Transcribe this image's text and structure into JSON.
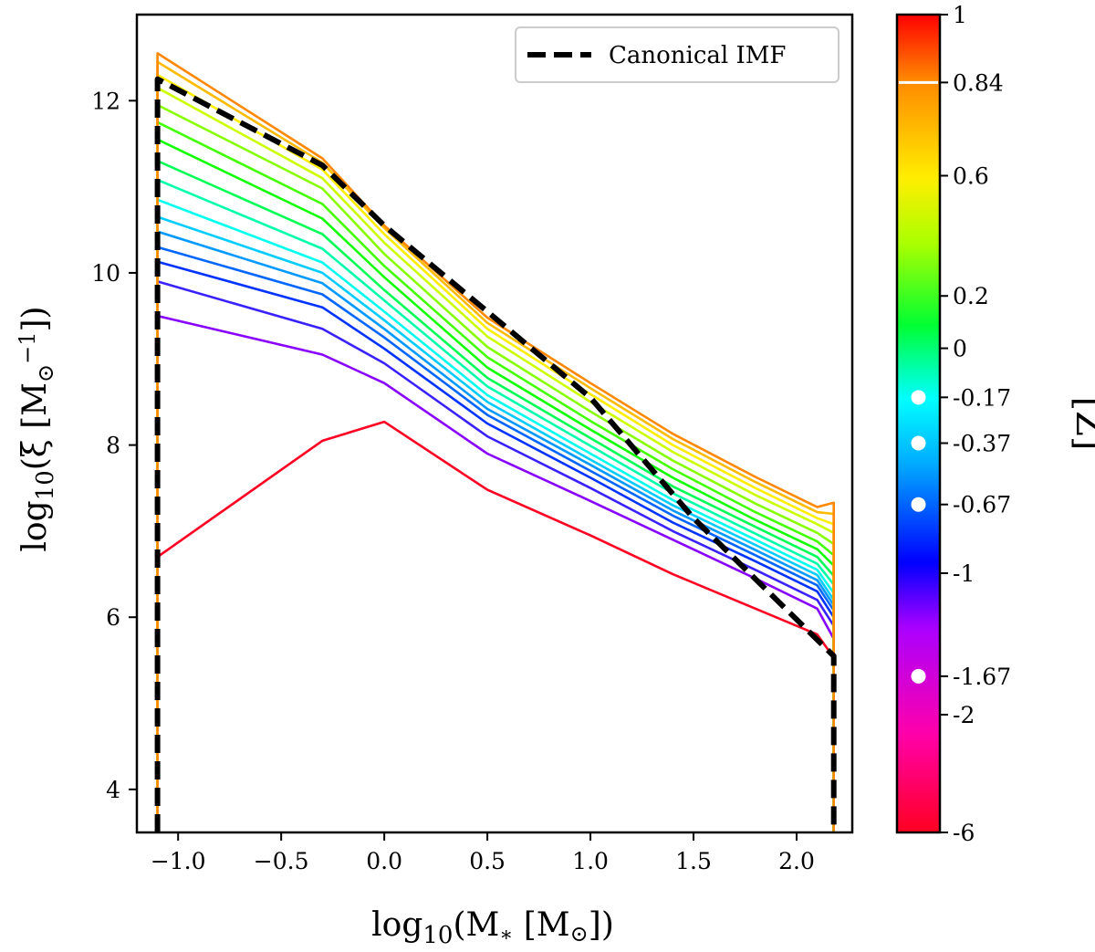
{
  "chart_data": {
    "type": "line",
    "xlabel_base": "log",
    "xlabel_sub": "10",
    "xlabel_rest": "(M",
    "xlabel_star": "∗",
    "xlabel_unit": " [M",
    "xlabel_sun": "⊙",
    "xlabel_close": "])",
    "ylabel_base": "log",
    "ylabel_sub": "10",
    "ylabel_rest": "(ξ [M",
    "ylabel_sun": "⊙",
    "ylabel_sup": "−1",
    "ylabel_close": "])",
    "colorbar_label": "[Z]",
    "xlim": [
      -1.2,
      2.27
    ],
    "ylim": [
      3.5,
      13.0
    ],
    "x_ticks": [
      -1.0,
      -0.5,
      0.0,
      0.5,
      1.0,
      1.5,
      2.0
    ],
    "x_tick_labels": [
      "−1.0",
      "−0.5",
      "0.0",
      "0.5",
      "1.0",
      "1.5",
      "2.0"
    ],
    "y_ticks": [
      4,
      6,
      8,
      10,
      12
    ],
    "y_tick_labels": [
      "4",
      "6",
      "8",
      "10",
      "12"
    ],
    "grid": false,
    "legend": {
      "position": "top-right",
      "entries": [
        "Canonical IMF"
      ]
    },
    "x_min": -1.1,
    "x_max": 2.18,
    "metallicity_curves": [
      {
        "Z": -6,
        "color": "#ff0022",
        "y": [
          6.7,
          8.05,
          8.27,
          7.48,
          6.95,
          6.5,
          6.1,
          5.8,
          5.53
        ]
      },
      {
        "Z": -1.67,
        "color": "#8800ff",
        "y": [
          9.5,
          9.05,
          8.72,
          7.9,
          7.35,
          6.9,
          6.45,
          6.1,
          5.75
        ]
      },
      {
        "Z": -1.0,
        "color": "#3a22ff",
        "y": [
          9.9,
          9.35,
          8.95,
          8.1,
          7.5,
          7.0,
          6.55,
          6.2,
          5.9
        ]
      },
      {
        "Z": -0.67,
        "color": "#0033ff",
        "y": [
          10.13,
          9.6,
          9.12,
          8.25,
          7.62,
          7.1,
          6.65,
          6.3,
          6.0
        ]
      },
      {
        "Z": -0.5,
        "color": "#0066ff",
        "y": [
          10.3,
          9.75,
          9.25,
          8.35,
          7.7,
          7.18,
          6.72,
          6.37,
          6.08
        ]
      },
      {
        "Z": -0.37,
        "color": "#0099ff",
        "y": [
          10.48,
          9.88,
          9.35,
          8.42,
          7.77,
          7.24,
          6.78,
          6.43,
          6.14
        ]
      },
      {
        "Z": -0.27,
        "color": "#00ccff",
        "y": [
          10.65,
          10.0,
          9.45,
          8.5,
          7.83,
          7.3,
          6.84,
          6.49,
          6.2
        ]
      },
      {
        "Z": -0.17,
        "color": "#00ffee",
        "y": [
          10.85,
          10.12,
          9.55,
          8.58,
          7.9,
          7.36,
          6.9,
          6.55,
          6.28
        ]
      },
      {
        "Z": -0.08,
        "color": "#00ffaa",
        "y": [
          11.08,
          10.28,
          9.68,
          8.68,
          7.99,
          7.44,
          6.97,
          6.62,
          6.38
        ]
      },
      {
        "Z": 0.0,
        "color": "#00ff55",
        "y": [
          11.3,
          10.45,
          9.8,
          8.78,
          8.08,
          7.52,
          7.05,
          6.7,
          6.48
        ]
      },
      {
        "Z": 0.1,
        "color": "#11ff00",
        "y": [
          11.55,
          10.63,
          9.95,
          8.9,
          8.18,
          7.62,
          7.13,
          6.79,
          6.6
        ]
      },
      {
        "Z": 0.2,
        "color": "#44ff00",
        "y": [
          11.75,
          10.8,
          10.08,
          9.02,
          8.28,
          7.72,
          7.22,
          6.88,
          6.72
        ]
      },
      {
        "Z": 0.35,
        "color": "#88ff00",
        "y": [
          11.95,
          10.98,
          10.22,
          9.14,
          8.39,
          7.82,
          7.32,
          6.98,
          6.85
        ]
      },
      {
        "Z": 0.5,
        "color": "#ccff00",
        "y": [
          12.15,
          11.1,
          10.35,
          9.26,
          8.5,
          7.92,
          7.42,
          7.08,
          6.98
        ]
      },
      {
        "Z": 0.6,
        "color": "#ffee00",
        "y": [
          12.3,
          11.2,
          10.45,
          9.35,
          8.59,
          8.0,
          7.5,
          7.15,
          7.08
        ]
      },
      {
        "Z": 0.72,
        "color": "#ffbb00",
        "y": [
          12.45,
          11.28,
          10.52,
          9.42,
          8.66,
          8.07,
          7.57,
          7.22,
          7.2
        ]
      },
      {
        "Z": 0.84,
        "color": "#ff8800",
        "y": [
          12.55,
          11.33,
          10.55,
          9.48,
          8.72,
          8.13,
          7.63,
          7.28,
          7.33
        ]
      }
    ],
    "curve_x": [
      -1.1,
      -0.3,
      0.0,
      0.5,
      1.0,
      1.4,
      1.8,
      2.1,
      2.18
    ],
    "canonical_imf": {
      "name": "Canonical IMF",
      "x": [
        -1.1,
        -1.1,
        -0.3,
        0.0,
        1.0,
        1.5,
        2.18,
        2.18
      ],
      "y": [
        3.5,
        12.25,
        11.25,
        10.55,
        8.55,
        7.15,
        5.55,
        3.5
      ]
    },
    "colorbar": {
      "ticks": [
        "1",
        "0.84",
        "0.6",
        "0.2",
        "0",
        "-0.17",
        "-0.37",
        "-0.67",
        "-1",
        "-1.67",
        "-2",
        "-6"
      ],
      "tick_fracs": [
        0.0,
        0.083,
        0.197,
        0.344,
        0.408,
        0.468,
        0.524,
        0.599,
        0.683,
        0.809,
        0.856,
        1.0
      ],
      "gradient_colors": [
        "#ff0022",
        "#ff00aa",
        "#aa00ff",
        "#0000ff",
        "#00aaff",
        "#00ffff",
        "#00ff33",
        "#aaff00",
        "#ffee00",
        "#ff8800",
        "#ff0000"
      ],
      "gradient_stops": [
        0.0,
        0.12,
        0.25,
        0.33,
        0.45,
        0.53,
        0.62,
        0.72,
        0.8,
        0.92,
        1.0
      ],
      "marker_values": [
        "-0.17",
        "-0.37",
        "-0.67",
        "-1.67"
      ],
      "line_marker_value": "0.84",
      "marker_color": "#ffffff"
    }
  }
}
